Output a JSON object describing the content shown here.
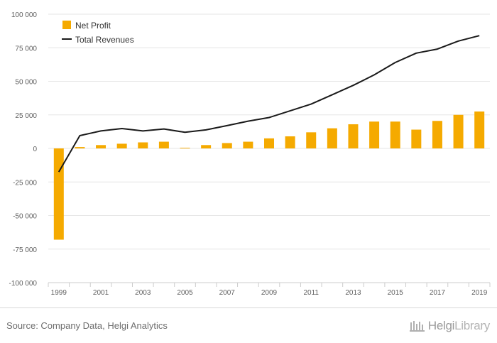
{
  "chart_data": {
    "type": "bar",
    "title": "",
    "xlabel": "",
    "ylabel": "",
    "ylim": [
      -100000,
      100000
    ],
    "yticks": [
      100000,
      75000,
      50000,
      25000,
      0,
      -25000,
      -50000,
      -75000,
      -100000
    ],
    "ytick_labels": [
      "100 000",
      "75 000",
      "50 000",
      "25 000",
      "0",
      "-25 000",
      "-50 000",
      "-75 000",
      "-100 000"
    ],
    "categories": [
      "1999",
      "2000",
      "2001",
      "2002",
      "2003",
      "2004",
      "2005",
      "2006",
      "2007",
      "2008",
      "2009",
      "2010",
      "2011",
      "2012",
      "2013",
      "2014",
      "2015",
      "2016",
      "2017",
      "2018",
      "2019"
    ],
    "xtick_labels": [
      "1999",
      "2001",
      "2003",
      "2005",
      "2007",
      "2009",
      "2011",
      "2013",
      "2015",
      "2017",
      "2019"
    ],
    "legend_position": "top-left",
    "grid": true,
    "series": [
      {
        "name": "Net Profit",
        "type": "bar",
        "color": "#f5aa00",
        "values": [
          -68000,
          1000,
          2500,
          3500,
          4500,
          5000,
          500,
          2500,
          4000,
          5000,
          7500,
          9000,
          12000,
          15000,
          18000,
          20000,
          20000,
          14000,
          20500,
          25000,
          27500
        ]
      },
      {
        "name": "Total Revenues",
        "type": "line",
        "color": "#1a1a1a",
        "values": [
          -17500,
          9500,
          13000,
          14800,
          13000,
          14500,
          12000,
          13800,
          17000,
          20300,
          23000,
          28000,
          33000,
          40000,
          47000,
          54800,
          64000,
          71000,
          74000,
          80000,
          84000
        ]
      }
    ]
  },
  "footer": {
    "source": "Source: Company Data, Helgi Analytics",
    "brand_part1": "Helgi",
    "brand_part2": "Library"
  },
  "colors": {
    "grid": "#e6e6e6",
    "axis_text": "#606060",
    "source_text": "#6d6d6d"
  }
}
